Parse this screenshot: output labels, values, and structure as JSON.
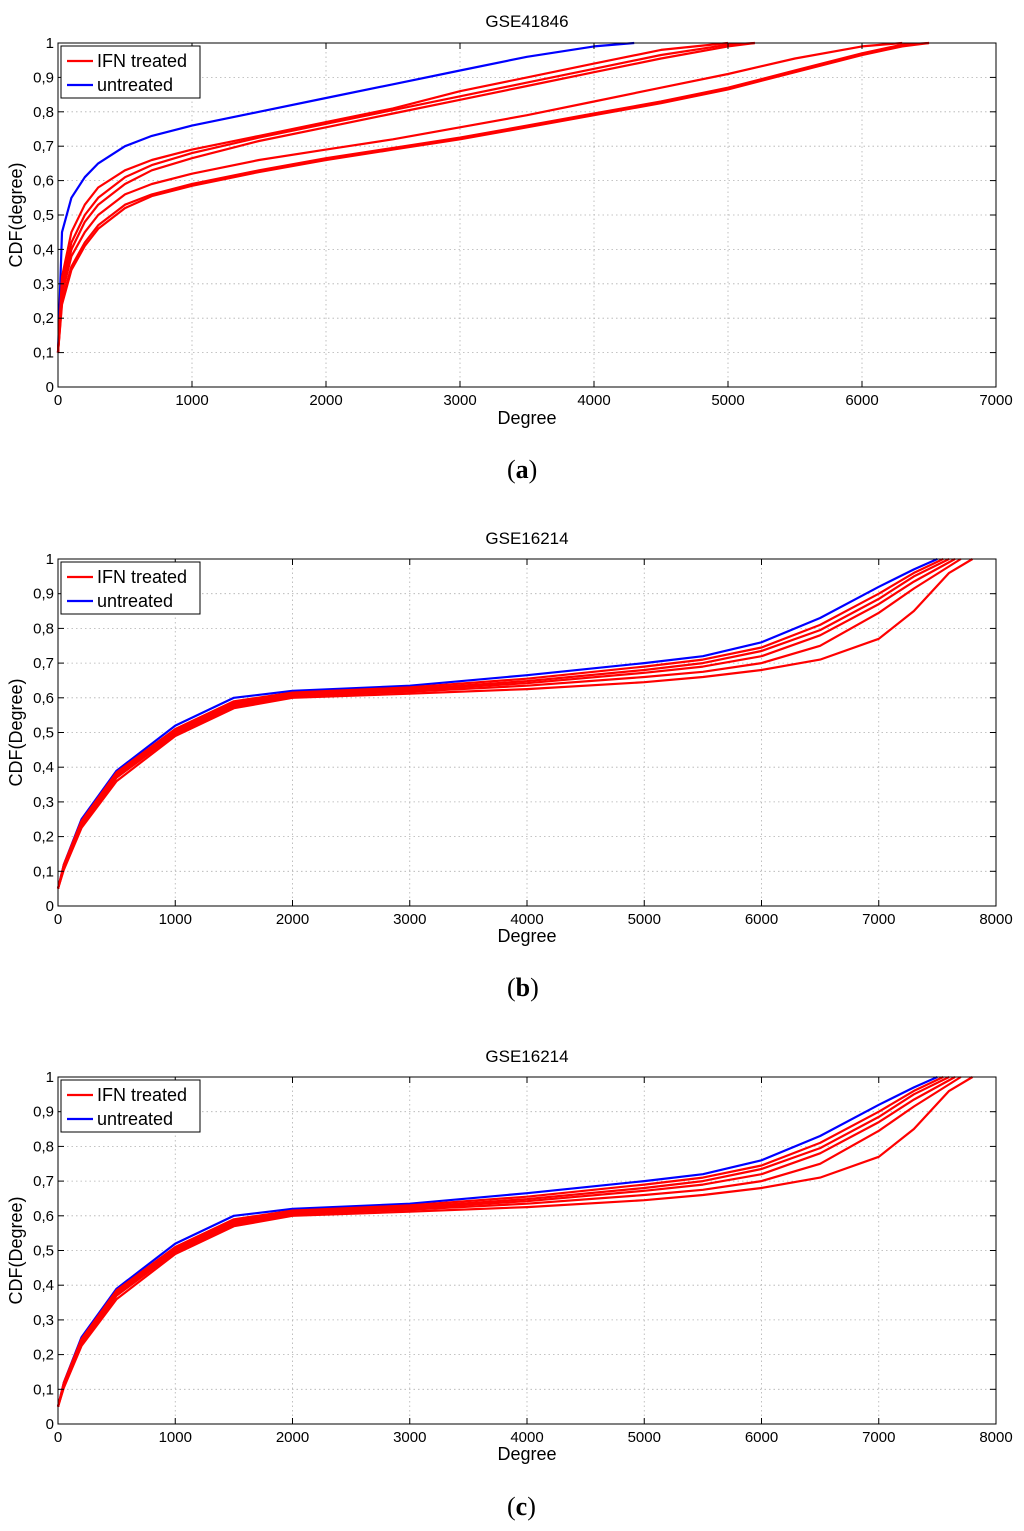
{
  "colors": {
    "treated": "#ff0000",
    "untreated": "#0000ff",
    "grid": "#b0b0b0",
    "axis": "#000000"
  },
  "chart_data": [
    {
      "type": "line",
      "title": "GSE41846",
      "xlabel": "Degree",
      "ylabel": "CDF(degree)",
      "xlim": [
        0,
        7000
      ],
      "ylim": [
        0,
        1
      ],
      "xticks": [
        "0",
        "1000",
        "2000",
        "3000",
        "4000",
        "5000",
        "6000",
        "7000"
      ],
      "yticks": [
        "0",
        "0,1",
        "0,2",
        "0,3",
        "0,4",
        "0,5",
        "0,6",
        "0,7",
        "0,8",
        "0,9",
        "1"
      ],
      "grid": true,
      "legend": {
        "position": "top-left",
        "entries": [
          "IFN treated",
          "untreated"
        ]
      },
      "panel_label": "a",
      "series": [
        {
          "group": "untreated",
          "x": [
            0,
            30,
            100,
            200,
            300,
            500,
            700,
            1000,
            1500,
            2000,
            2500,
            3000,
            3500,
            4000,
            4300
          ],
          "y": [
            0.1,
            0.45,
            0.55,
            0.61,
            0.65,
            0.7,
            0.73,
            0.76,
            0.8,
            0.84,
            0.88,
            0.92,
            0.96,
            0.99,
            1.0
          ]
        },
        {
          "group": "IFN treated",
          "x": [
            0,
            30,
            100,
            200,
            300,
            500,
            700,
            1000,
            1500,
            2000,
            2500,
            3000,
            3500,
            4000,
            4500,
            5000
          ],
          "y": [
            0.1,
            0.32,
            0.45,
            0.53,
            0.58,
            0.63,
            0.66,
            0.69,
            0.73,
            0.77,
            0.81,
            0.86,
            0.9,
            0.94,
            0.98,
            1.0
          ]
        },
        {
          "group": "IFN treated",
          "x": [
            0,
            30,
            100,
            200,
            300,
            500,
            700,
            1000,
            1500,
            2000,
            2500,
            3000,
            3500,
            4000,
            4500,
            5000,
            5200
          ],
          "y": [
            0.1,
            0.3,
            0.42,
            0.5,
            0.55,
            0.61,
            0.645,
            0.68,
            0.725,
            0.765,
            0.805,
            0.845,
            0.885,
            0.925,
            0.965,
            0.995,
            1.0
          ]
        },
        {
          "group": "IFN treated",
          "x": [
            0,
            30,
            100,
            200,
            300,
            500,
            700,
            1000,
            1500,
            2000,
            2500,
            3000,
            3500,
            4000,
            4500,
            5000,
            5200
          ],
          "y": [
            0.1,
            0.28,
            0.4,
            0.48,
            0.53,
            0.59,
            0.63,
            0.665,
            0.715,
            0.755,
            0.795,
            0.835,
            0.875,
            0.915,
            0.955,
            0.99,
            1.0
          ]
        },
        {
          "group": "IFN treated",
          "x": [
            0,
            30,
            100,
            200,
            300,
            500,
            700,
            1000,
            1500,
            2000,
            2500,
            3000,
            3500,
            4000,
            4500,
            5000,
            5500,
            6000,
            6300
          ],
          "y": [
            0.1,
            0.27,
            0.38,
            0.45,
            0.5,
            0.56,
            0.59,
            0.62,
            0.66,
            0.69,
            0.72,
            0.755,
            0.79,
            0.83,
            0.87,
            0.91,
            0.955,
            0.99,
            1.0
          ]
        },
        {
          "group": "IFN treated",
          "x": [
            0,
            30,
            100,
            200,
            300,
            500,
            700,
            1000,
            1500,
            2000,
            2500,
            3000,
            3500,
            4000,
            4500,
            5000,
            5500,
            6000,
            6300,
            6500
          ],
          "y": [
            0.1,
            0.25,
            0.35,
            0.42,
            0.47,
            0.53,
            0.56,
            0.59,
            0.63,
            0.665,
            0.695,
            0.725,
            0.76,
            0.795,
            0.83,
            0.87,
            0.92,
            0.97,
            0.995,
            1.0
          ]
        },
        {
          "group": "IFN treated",
          "x": [
            0,
            30,
            100,
            200,
            300,
            500,
            700,
            1000,
            1500,
            2000,
            2500,
            3000,
            3500,
            4000,
            4500,
            5000,
            5500,
            6000,
            6300,
            6500
          ],
          "y": [
            0.1,
            0.24,
            0.34,
            0.41,
            0.46,
            0.52,
            0.555,
            0.585,
            0.625,
            0.66,
            0.69,
            0.72,
            0.755,
            0.79,
            0.825,
            0.865,
            0.915,
            0.965,
            0.99,
            1.0
          ]
        }
      ]
    },
    {
      "type": "line",
      "title": "GSE16214",
      "xlabel": "Degree",
      "ylabel": "CDF(Degree)",
      "xlim": [
        0,
        8000
      ],
      "ylim": [
        0,
        1
      ],
      "xticks": [
        "0",
        "1000",
        "2000",
        "3000",
        "4000",
        "5000",
        "6000",
        "7000",
        "8000"
      ],
      "yticks": [
        "0",
        "0,1",
        "0,2",
        "0,3",
        "0,4",
        "0,5",
        "0,6",
        "0,7",
        "0,8",
        "0,9",
        "1"
      ],
      "grid": true,
      "legend": {
        "position": "top-left",
        "entries": [
          "IFN treated",
          "untreated"
        ]
      },
      "panel_label": "b",
      "series": [
        {
          "group": "untreated",
          "x": [
            0,
            50,
            200,
            500,
            1000,
            1500,
            2000,
            3000,
            4000,
            5000,
            5500,
            6000,
            6500,
            7000,
            7300,
            7500
          ],
          "y": [
            0.05,
            0.12,
            0.25,
            0.39,
            0.52,
            0.6,
            0.62,
            0.635,
            0.665,
            0.7,
            0.72,
            0.76,
            0.83,
            0.92,
            0.97,
            1.0
          ]
        },
        {
          "group": "IFN treated",
          "x": [
            0,
            50,
            200,
            500,
            1000,
            1500,
            2000,
            3000,
            4000,
            5000,
            5500,
            6000,
            6500,
            7000,
            7300,
            7550
          ],
          "y": [
            0.05,
            0.12,
            0.245,
            0.385,
            0.51,
            0.59,
            0.615,
            0.63,
            0.655,
            0.69,
            0.71,
            0.745,
            0.81,
            0.9,
            0.96,
            1.0
          ]
        },
        {
          "group": "IFN treated",
          "x": [
            0,
            50,
            200,
            500,
            1000,
            1500,
            2000,
            3000,
            4000,
            5000,
            5500,
            6000,
            6500,
            7000,
            7300,
            7600
          ],
          "y": [
            0.05,
            0.115,
            0.24,
            0.38,
            0.505,
            0.585,
            0.612,
            0.625,
            0.648,
            0.68,
            0.7,
            0.735,
            0.795,
            0.885,
            0.95,
            1.0
          ]
        },
        {
          "group": "IFN treated",
          "x": [
            0,
            50,
            200,
            500,
            1000,
            1500,
            2000,
            3000,
            4000,
            5000,
            5500,
            6000,
            6500,
            7000,
            7300,
            7650
          ],
          "y": [
            0.05,
            0.11,
            0.235,
            0.375,
            0.5,
            0.58,
            0.608,
            0.622,
            0.642,
            0.672,
            0.69,
            0.72,
            0.78,
            0.87,
            0.935,
            1.0
          ]
        },
        {
          "group": "IFN treated",
          "x": [
            0,
            50,
            200,
            500,
            1000,
            1500,
            2000,
            3000,
            4000,
            5000,
            5500,
            6000,
            6500,
            7000,
            7300,
            7700
          ],
          "y": [
            0.05,
            0.11,
            0.23,
            0.37,
            0.495,
            0.575,
            0.605,
            0.618,
            0.635,
            0.66,
            0.675,
            0.7,
            0.75,
            0.845,
            0.915,
            1.0
          ]
        },
        {
          "group": "IFN treated",
          "x": [
            0,
            50,
            200,
            500,
            1000,
            1500,
            2000,
            3000,
            4000,
            5000,
            5500,
            6000,
            6500,
            7000,
            7300,
            7600,
            7800
          ],
          "y": [
            0.05,
            0.105,
            0.225,
            0.36,
            0.49,
            0.57,
            0.6,
            0.612,
            0.625,
            0.645,
            0.66,
            0.68,
            0.71,
            0.77,
            0.85,
            0.96,
            1.0
          ]
        }
      ]
    },
    {
      "type": "line",
      "title": "GSE16214",
      "xlabel": "Degree",
      "ylabel": "CDF(Degree)",
      "xlim": [
        0,
        8000
      ],
      "ylim": [
        0,
        1
      ],
      "xticks": [
        "0",
        "1000",
        "2000",
        "3000",
        "4000",
        "5000",
        "6000",
        "7000",
        "8000"
      ],
      "yticks": [
        "0",
        "0,1",
        "0,2",
        "0,3",
        "0,4",
        "0,5",
        "0,6",
        "0,7",
        "0,8",
        "0,9",
        "1"
      ],
      "grid": true,
      "legend": {
        "position": "top-left",
        "entries": [
          "IFN treated",
          "untreated"
        ]
      },
      "panel_label": "c",
      "series": [
        {
          "group": "untreated",
          "x": [
            0,
            50,
            200,
            500,
            1000,
            1500,
            2000,
            3000,
            4000,
            5000,
            5500,
            6000,
            6500,
            7000,
            7300,
            7500
          ],
          "y": [
            0.05,
            0.12,
            0.25,
            0.39,
            0.52,
            0.6,
            0.62,
            0.635,
            0.665,
            0.7,
            0.72,
            0.76,
            0.83,
            0.92,
            0.97,
            1.0
          ]
        },
        {
          "group": "IFN treated",
          "x": [
            0,
            50,
            200,
            500,
            1000,
            1500,
            2000,
            3000,
            4000,
            5000,
            5500,
            6000,
            6500,
            7000,
            7300,
            7550
          ],
          "y": [
            0.05,
            0.12,
            0.245,
            0.385,
            0.51,
            0.59,
            0.615,
            0.63,
            0.655,
            0.69,
            0.71,
            0.745,
            0.81,
            0.9,
            0.96,
            1.0
          ]
        },
        {
          "group": "IFN treated",
          "x": [
            0,
            50,
            200,
            500,
            1000,
            1500,
            2000,
            3000,
            4000,
            5000,
            5500,
            6000,
            6500,
            7000,
            7300,
            7600
          ],
          "y": [
            0.05,
            0.115,
            0.24,
            0.38,
            0.505,
            0.585,
            0.612,
            0.625,
            0.648,
            0.68,
            0.7,
            0.735,
            0.795,
            0.885,
            0.95,
            1.0
          ]
        },
        {
          "group": "IFN treated",
          "x": [
            0,
            50,
            200,
            500,
            1000,
            1500,
            2000,
            3000,
            4000,
            5000,
            5500,
            6000,
            6500,
            7000,
            7300,
            7650
          ],
          "y": [
            0.05,
            0.11,
            0.235,
            0.375,
            0.5,
            0.58,
            0.608,
            0.622,
            0.642,
            0.672,
            0.69,
            0.72,
            0.78,
            0.87,
            0.935,
            1.0
          ]
        },
        {
          "group": "IFN treated",
          "x": [
            0,
            50,
            200,
            500,
            1000,
            1500,
            2000,
            3000,
            4000,
            5000,
            5500,
            6000,
            6500,
            7000,
            7300,
            7700
          ],
          "y": [
            0.05,
            0.11,
            0.23,
            0.37,
            0.495,
            0.575,
            0.605,
            0.618,
            0.635,
            0.66,
            0.675,
            0.7,
            0.75,
            0.845,
            0.915,
            1.0
          ]
        },
        {
          "group": "IFN treated",
          "x": [
            0,
            50,
            200,
            500,
            1000,
            1500,
            2000,
            3000,
            4000,
            5000,
            5500,
            6000,
            6500,
            7000,
            7300,
            7600,
            7800
          ],
          "y": [
            0.05,
            0.105,
            0.225,
            0.36,
            0.49,
            0.57,
            0.6,
            0.612,
            0.625,
            0.645,
            0.66,
            0.68,
            0.71,
            0.77,
            0.85,
            0.96,
            1.0
          ]
        }
      ]
    }
  ]
}
